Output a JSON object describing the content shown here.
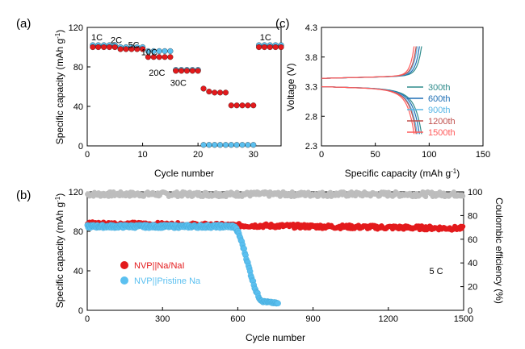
{
  "chart_data": [
    {
      "panel": "(a)",
      "type": "scatter",
      "xlabel": "Cycle number",
      "ylabel": "Specific capacity (mAh g",
      "ylabel_sup": "-1",
      "ylabel_close": ")",
      "xlim": [
        0,
        35
      ],
      "ylim": [
        0,
        120
      ],
      "xticks": [
        0,
        10,
        20,
        30
      ],
      "yticks": [
        0,
        40,
        80,
        120
      ],
      "series": [
        {
          "color": "#e31a1c",
          "x": [
            1,
            2,
            3,
            4,
            5,
            6,
            7,
            8,
            9,
            10,
            11,
            12,
            13,
            14,
            15,
            16,
            17,
            18,
            19,
            20,
            21,
            22,
            23,
            24,
            25,
            26,
            27,
            28,
            29,
            30,
            31,
            32,
            33,
            34,
            35
          ],
          "y": [
            100,
            100,
            100,
            100,
            100,
            98,
            98,
            98,
            98,
            98,
            90,
            90,
            90,
            90,
            90,
            76,
            76,
            76,
            76,
            76,
            58,
            55,
            54,
            54,
            54,
            41,
            41,
            41,
            41,
            41,
            100,
            100,
            100,
            100,
            100
          ]
        },
        {
          "color": "#5bc0f0",
          "x": [
            1,
            2,
            3,
            4,
            5,
            6,
            7,
            8,
            9,
            10,
            11,
            12,
            13,
            14,
            15,
            16,
            17,
            18,
            19,
            20,
            21,
            22,
            23,
            24,
            25,
            26,
            27,
            28,
            29,
            30,
            31,
            32,
            33,
            34,
            35
          ],
          "y": [
            102,
            102,
            102,
            102,
            102,
            100,
            100,
            100,
            100,
            100,
            96,
            96,
            96,
            96,
            96,
            77,
            77,
            77,
            77,
            77,
            1,
            1,
            1,
            1,
            1,
            1,
            1,
            1,
            1,
            1,
            102,
            102,
            102,
            102,
            102
          ]
        }
      ],
      "annotations": [
        {
          "text": "1C",
          "x": 5,
          "y": 107
        },
        {
          "text": "2C",
          "x": 15,
          "y": 104
        },
        {
          "text": "5C",
          "x": 24,
          "y": 99
        },
        {
          "text": "10C",
          "x": 32,
          "y": 92
        },
        {
          "text": "20C",
          "x": 36,
          "y": 71
        },
        {
          "text": "30C",
          "x": 47,
          "y": 61
        },
        {
          "text": "1C",
          "x": 92,
          "y": 107
        }
      ]
    },
    {
      "panel": "(c)",
      "type": "line",
      "xlabel": "Specific capacity (mAh g",
      "xlabel_sup": "-1",
      "xlabel_close": ")",
      "ylabel": "Voltage (V)",
      "xlim": [
        0,
        150
      ],
      "ylim": [
        2.3,
        4.3
      ],
      "xticks": [
        0,
        50,
        100,
        150
      ],
      "yticks": [
        2.3,
        2.8,
        3.3,
        3.8,
        4.3
      ],
      "yticklabels": [
        "2.3",
        "2.8",
        "3.3",
        "3.8",
        "4.3"
      ],
      "series": [
        {
          "name": "300th",
          "color": "#2e8b8b",
          "qmax": 93
        },
        {
          "name": "600th",
          "color": "#1f6fb5",
          "qmax": 91
        },
        {
          "name": "900th",
          "color": "#59b7e6",
          "qmax": 89
        },
        {
          "name": "1200th",
          "color": "#c0504d",
          "qmax": 88
        },
        {
          "name": "1500th",
          "color": "#ff5a5a",
          "qmax": 86
        }
      ]
    },
    {
      "panel": "(b)",
      "type": "scatter",
      "xlabel": "Cycle number",
      "ylabel": "Specific capacity (mAh g",
      "ylabel_sup": "-1",
      "ylabel_close": ")",
      "y2label": "Coulombic efficiency (%)",
      "xlim": [
        0,
        1500
      ],
      "ylim": [
        0,
        120
      ],
      "y2lim": [
        0,
        100
      ],
      "xticks": [
        0,
        300,
        600,
        900,
        1200,
        1500
      ],
      "yticks": [
        0,
        40,
        80,
        120
      ],
      "y2ticks": [
        0,
        20,
        40,
        60,
        80,
        100
      ],
      "annotation": "5 C",
      "series": [
        {
          "name": "NVP||Na/NaI",
          "color": "#e31a1c",
          "capacity_start": 88,
          "capacity_end": 83,
          "efficiency": 98
        },
        {
          "name": "NVP||Pristine Na",
          "color": "#5bc0f0",
          "capacity_plateau": 85,
          "drop_start_cycle": 580,
          "drop_end_cycle": 700,
          "capacity_final": 7,
          "last_cycle": 760
        }
      ]
    }
  ]
}
